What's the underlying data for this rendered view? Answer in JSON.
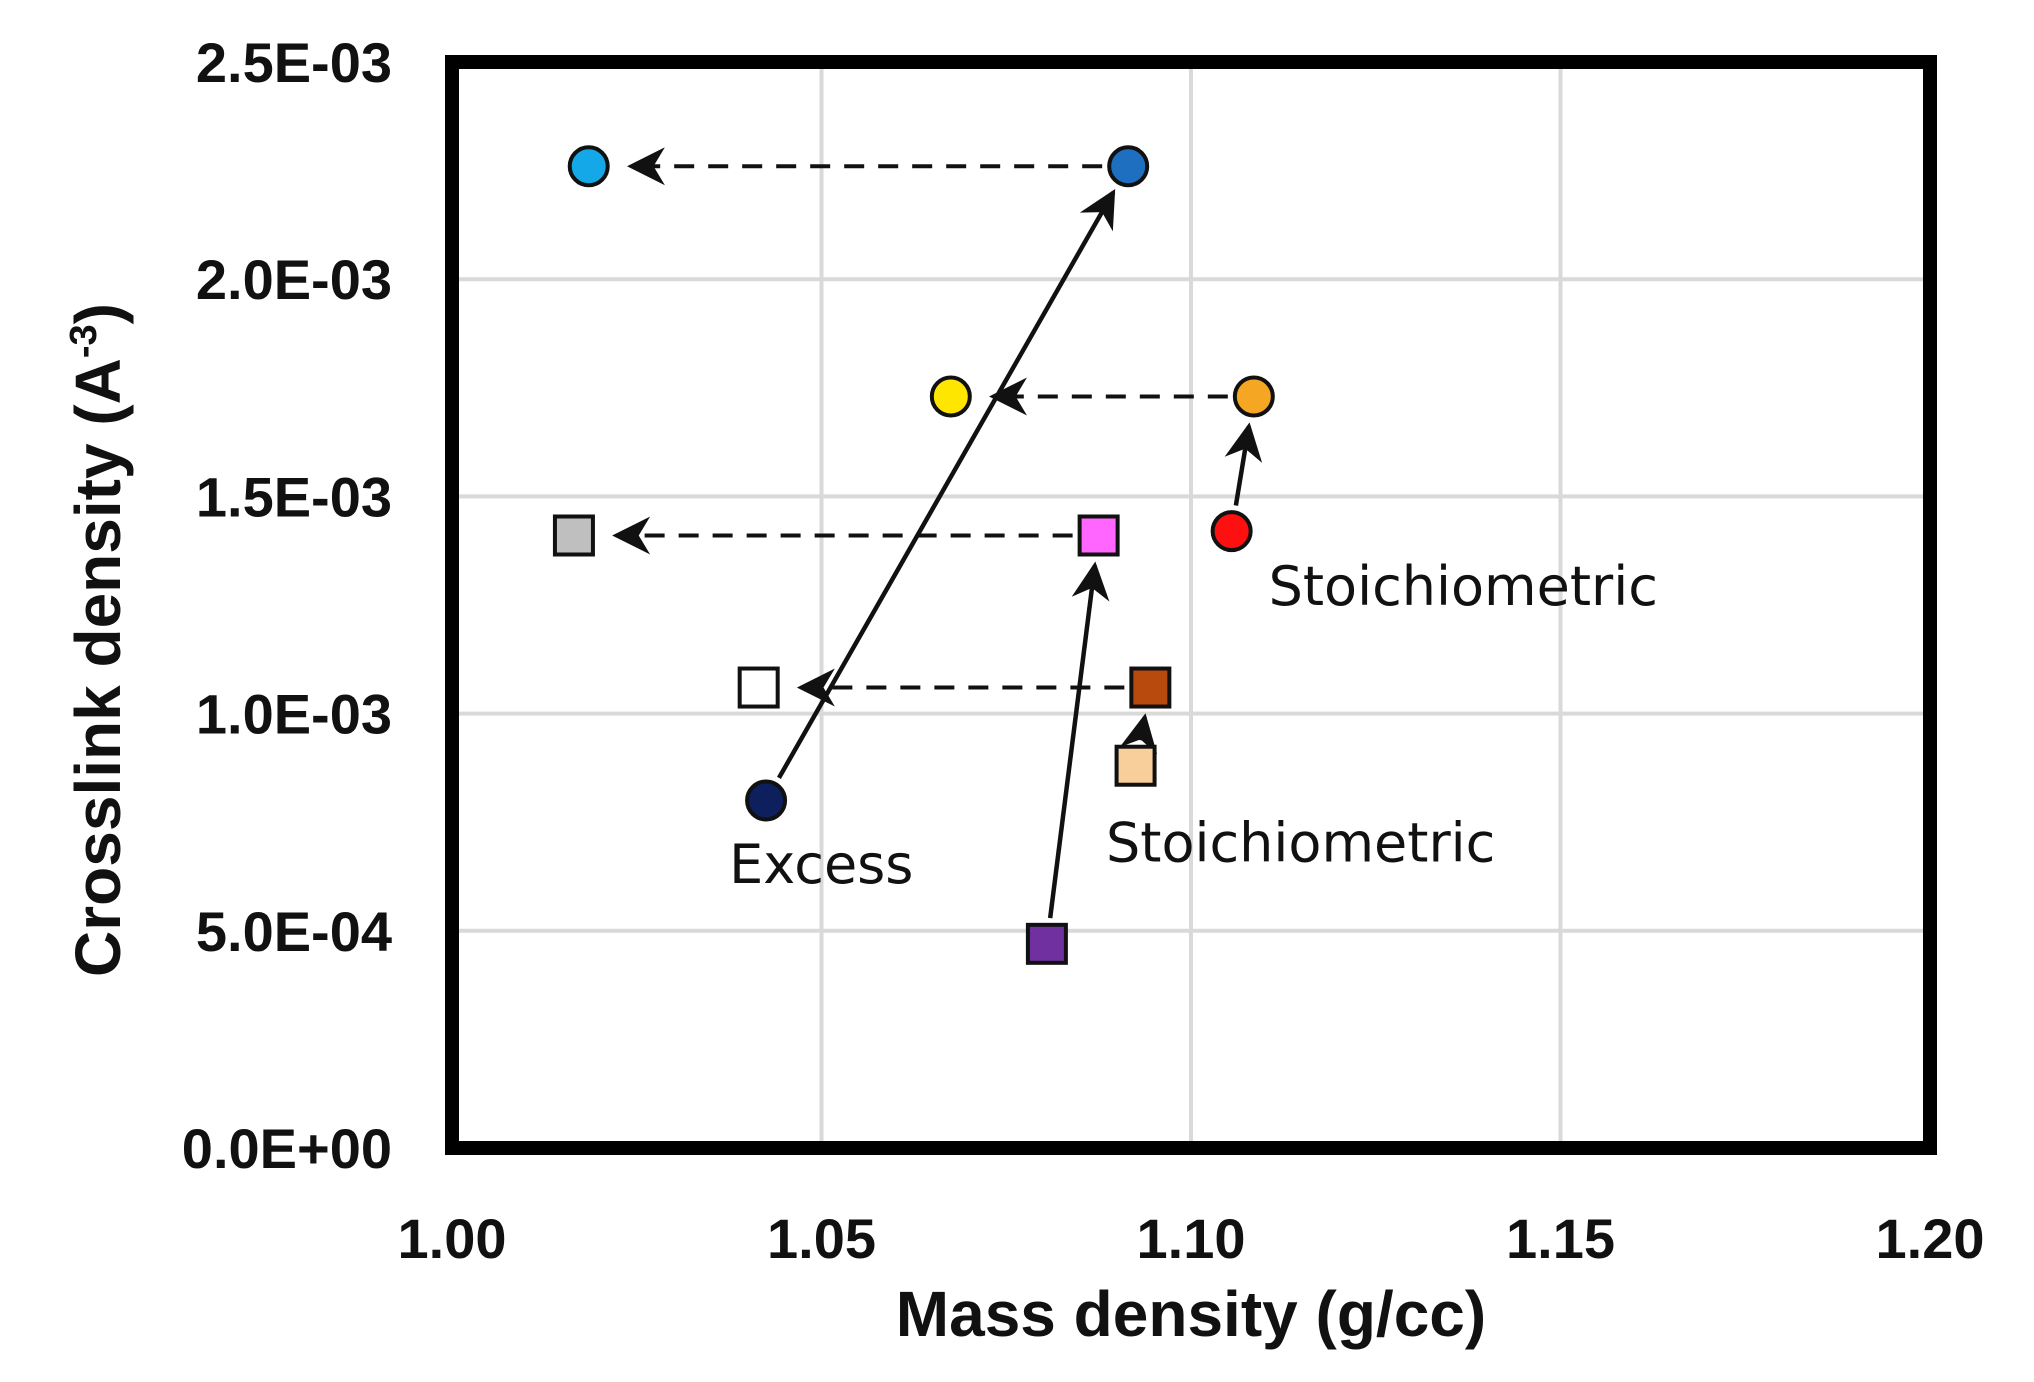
{
  "chart_data": {
    "type": "scatter",
    "title": "",
    "xlabel": "Mass density (g/cc)",
    "ylabel": "Crosslink density (A",
    "ylabel_superscript": "-3",
    "ylabel_suffix": ")",
    "xlim": [
      1.0,
      1.2
    ],
    "ylim": [
      0.0,
      0.0025
    ],
    "grid": true,
    "x_ticks": [
      1.0,
      1.05,
      1.1,
      1.15,
      1.2
    ],
    "x_tick_labels": [
      "1.00",
      "1.05",
      "1.10",
      "1.15",
      "1.20"
    ],
    "y_ticks": [
      0.0,
      0.0005,
      0.001,
      0.0015,
      0.002,
      0.0025
    ],
    "y_tick_labels": [
      "0.0E+00",
      "5.0E-04",
      "1.0E-03",
      "1.5E-03",
      "2.0E-03",
      "2.5E-03"
    ],
    "points": [
      {
        "id": "dark-navy-circle",
        "shape": "circle",
        "color": "#0d1f5c",
        "x": 1.0425,
        "y": 0.0008
      },
      {
        "id": "blue-circle",
        "shape": "circle",
        "color": "#1f6fc0",
        "x": 1.0915,
        "y": 0.00226
      },
      {
        "id": "light-blue-circle",
        "shape": "circle",
        "color": "#15a8e8",
        "x": 1.0185,
        "y": 0.00226
      },
      {
        "id": "yellow-circle",
        "shape": "circle",
        "color": "#ffe600",
        "x": 1.0675,
        "y": 0.00173
      },
      {
        "id": "orange-circle",
        "shape": "circle",
        "color": "#f5a623",
        "x": 1.1085,
        "y": 0.00173
      },
      {
        "id": "red-circle",
        "shape": "circle",
        "color": "#ff1010",
        "x": 1.1055,
        "y": 0.00142
      },
      {
        "id": "grey-square",
        "shape": "square",
        "color": "#bfbfbf",
        "x": 1.0165,
        "y": 0.00141
      },
      {
        "id": "pink-square",
        "shape": "square",
        "color": "#ff66ff",
        "x": 1.0875,
        "y": 0.00141
      },
      {
        "id": "white-square",
        "shape": "square",
        "color": "#ffffff",
        "x": 1.0415,
        "y": 0.00106
      },
      {
        "id": "rust-square",
        "shape": "square",
        "color": "#b84a0e",
        "x": 1.0945,
        "y": 0.00106
      },
      {
        "id": "peach-square",
        "shape": "square",
        "color": "#f8cf9a",
        "x": 1.0925,
        "y": 0.00088
      },
      {
        "id": "purple-square",
        "shape": "square",
        "color": "#7030a0",
        "x": 1.0805,
        "y": 0.00047
      }
    ],
    "arrows": [
      {
        "id": "arrow-navy-to-blue",
        "style": "solid",
        "from": [
          1.0425,
          0.0008
        ],
        "to": [
          1.0915,
          0.00226
        ]
      },
      {
        "id": "arrow-purple-to-pink",
        "style": "solid",
        "from": [
          1.0805,
          0.00047
        ],
        "to": [
          1.0875,
          0.00141
        ]
      },
      {
        "id": "arrow-red-to-orange",
        "style": "solid",
        "from": [
          1.1055,
          0.00142
        ],
        "to": [
          1.1085,
          0.00173
        ]
      },
      {
        "id": "arrow-peach-to-rust",
        "style": "solid",
        "from": [
          1.0925,
          0.00088
        ],
        "to": [
          1.0945,
          0.00106
        ]
      },
      {
        "id": "arrow-blue-to-lightblue",
        "style": "dashed",
        "from": [
          1.0915,
          0.00226
        ],
        "to": [
          1.0185,
          0.00226
        ]
      },
      {
        "id": "arrow-orange-to-yellow",
        "style": "dashed",
        "from": [
          1.1085,
          0.00173
        ],
        "to": [
          1.0675,
          0.00173
        ]
      },
      {
        "id": "arrow-pink-to-grey",
        "style": "dashed",
        "from": [
          1.0875,
          0.00141
        ],
        "to": [
          1.0165,
          0.00141
        ]
      },
      {
        "id": "arrow-rust-to-white",
        "style": "dashed",
        "from": [
          1.0945,
          0.00106
        ],
        "to": [
          1.0415,
          0.00106
        ]
      }
    ],
    "annotations": [
      {
        "id": "annot-stoichiometric-upper",
        "text": "Stoichiometric",
        "x": 1.1105,
        "y": 0.00125
      },
      {
        "id": "annot-stoichiometric-lower",
        "text": "Stoichiometric",
        "x": 1.0885,
        "y": 0.00066
      },
      {
        "id": "annot-excess",
        "text": "Excess",
        "x": 1.0375,
        "y": 0.00061
      }
    ]
  }
}
